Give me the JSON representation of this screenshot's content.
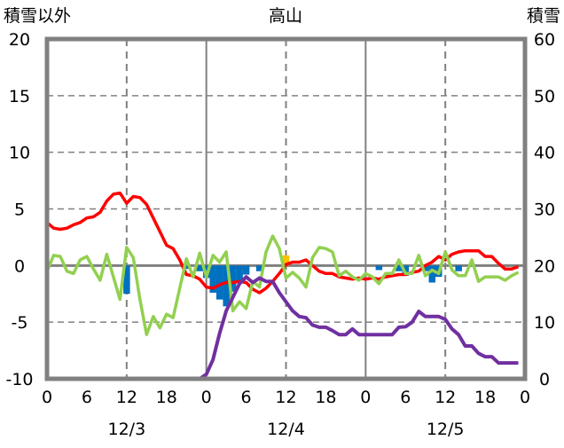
{
  "chart_data": {
    "type": "line",
    "title": "高山",
    "left_axis_label": "積雪以外",
    "right_axis_label": "積雪",
    "ylim_left": [
      -10,
      20
    ],
    "ylim_right": [
      0,
      60
    ],
    "left_ticks": [
      "20",
      "15",
      "10",
      "5",
      "0",
      "-5",
      "-10"
    ],
    "right_ticks": [
      "60",
      "50",
      "40",
      "30",
      "20",
      "10",
      "0"
    ],
    "x_hours_range": [
      0,
      72
    ],
    "x_tick_labels": [
      "0",
      "6",
      "12",
      "18",
      "0",
      "6",
      "12",
      "18",
      "0",
      "6",
      "12",
      "18",
      "0"
    ],
    "date_labels": [
      "12/3",
      "12/4",
      "12/5"
    ],
    "grid": true,
    "series": [
      {
        "name": "temperature",
        "axis": "left",
        "color": "#ff0000",
        "values": [
          3.8,
          3.3,
          3.2,
          3.3,
          3.6,
          3.8,
          4.2,
          4.3,
          4.7,
          5.7,
          6.3,
          6.4,
          5.5,
          6.1,
          6.0,
          5.4,
          4.2,
          3.0,
          1.8,
          1.5,
          0.5,
          -0.8,
          -0.9,
          -1.2,
          -1.9,
          -2.0,
          -1.7,
          -1.5,
          -1.5,
          -1.4,
          -1.5,
          -2.1,
          -2.4,
          -2.0,
          -1.4,
          -0.7,
          0.1,
          0.3,
          0.3,
          0.5,
          0.0,
          -0.5,
          -0.7,
          -0.7,
          -1.0,
          -1.1,
          -1.2,
          -1.1,
          -1.2,
          -1.1,
          -1.2,
          -1.0,
          -0.9,
          -0.8,
          -0.8,
          -0.6,
          -0.5,
          0.0,
          0.3,
          0.8,
          0.5,
          1.0,
          1.2,
          1.3,
          1.3,
          1.3,
          0.8,
          0.8,
          0.2,
          -0.3,
          -0.3,
          -0.1
        ]
      },
      {
        "name": "green-series",
        "axis": "left",
        "color": "#92d050",
        "values": [
          -0.5,
          0.9,
          0.8,
          -0.5,
          -0.7,
          0.5,
          0.8,
          -0.3,
          -1.3,
          1.0,
          -1.0,
          -3.0,
          1.6,
          0.7,
          -3.0,
          -6.1,
          -4.5,
          -5.5,
          -4.3,
          -4.6,
          -2.0,
          0.6,
          -1.0,
          1.1,
          -1.0,
          0.9,
          0.3,
          1.2,
          -4.0,
          -3.2,
          -3.8,
          -1.4,
          -1.9,
          1.2,
          2.6,
          1.5,
          -1.1,
          -0.6,
          -1.1,
          -1.9,
          0.7,
          1.6,
          1.5,
          1.2,
          -0.9,
          -0.5,
          -1.0,
          -1.3,
          -0.7,
          -1.0,
          -1.6,
          -0.7,
          -0.7,
          0.5,
          -0.7,
          -0.7,
          0.9,
          -0.9,
          -0.4,
          -0.7,
          1.2,
          -0.4,
          -0.9,
          -0.9,
          0.5,
          -1.4,
          -1.0,
          -1.0,
          -1.0,
          -1.3,
          -0.9,
          -0.6
        ]
      },
      {
        "name": "snow-depth",
        "axis": "right",
        "color": "#7030a0",
        "values": [
          0,
          0,
          0,
          0,
          0,
          0,
          0,
          0,
          0,
          0,
          0,
          0,
          0,
          0,
          0,
          0,
          0,
          0,
          0,
          0,
          0,
          0,
          0,
          0,
          0.8,
          3.4,
          8,
          12,
          14.4,
          16.8,
          18,
          17,
          17.8,
          17.2,
          17.2,
          15.2,
          13.6,
          12,
          11,
          10.8,
          9.5,
          9.1,
          9.1,
          8.5,
          7.8,
          7.8,
          8.8,
          7.8,
          7.8,
          7.8,
          7.8,
          7.8,
          7.8,
          9.1,
          9.2,
          10,
          11.9,
          11,
          11,
          11,
          10.5,
          8.8,
          7.8,
          5.8,
          5.8,
          4.5,
          3.9,
          3.9,
          2.8,
          2.8,
          2.8,
          2.8
        ]
      }
    ],
    "bars": [
      {
        "hour": 12,
        "value": -2.5,
        "color": "#0070c0"
      },
      {
        "hour": 21,
        "value": -0.3,
        "color": "#0070c0"
      },
      {
        "hour": 23,
        "value": -0.5,
        "color": "#0070c0"
      },
      {
        "hour": 24,
        "value": -1.1,
        "color": "#0070c0"
      },
      {
        "hour": 25,
        "value": -2.4,
        "color": "#0070c0"
      },
      {
        "hour": 26,
        "value": -3.0,
        "color": "#0070c0"
      },
      {
        "hour": 27,
        "value": -3.6,
        "color": "#0070c0"
      },
      {
        "hour": 28,
        "value": -2.3,
        "color": "#0070c0"
      },
      {
        "hour": 29,
        "value": -1.5,
        "color": "#0070c0"
      },
      {
        "hour": 30,
        "value": -0.8,
        "color": "#0070c0"
      },
      {
        "hour": 32,
        "value": -0.5,
        "color": "#0070c0"
      },
      {
        "hour": 36,
        "value": 0.9,
        "color": "#ffc000"
      },
      {
        "hour": 50,
        "value": -0.4,
        "color": "#0070c0"
      },
      {
        "hour": 53,
        "value": -0.5,
        "color": "#0070c0"
      },
      {
        "hour": 54,
        "value": -0.9,
        "color": "#0070c0"
      },
      {
        "hour": 57,
        "value": -0.5,
        "color": "#0070c0"
      },
      {
        "hour": 58,
        "value": -1.5,
        "color": "#0070c0"
      },
      {
        "hour": 59,
        "value": -1.0,
        "color": "#0070c0"
      },
      {
        "hour": 62,
        "value": -0.5,
        "color": "#0070c0"
      }
    ]
  }
}
